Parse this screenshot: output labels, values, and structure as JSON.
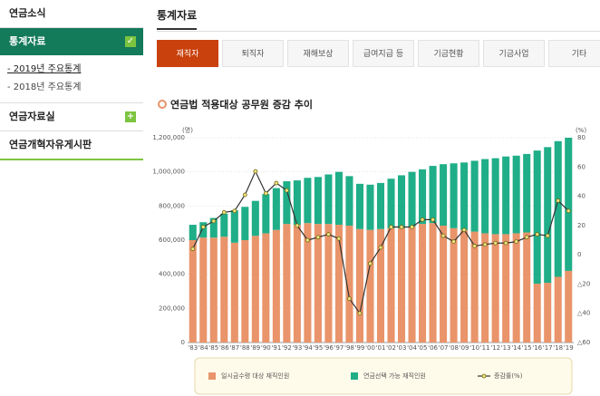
{
  "sidebar": {
    "items": [
      "연금소식",
      "통계자료",
      "연금자료실",
      "연금개혁자유게시판"
    ],
    "subitems": [
      "- 2019년 주요통계",
      "- 2018년 주요통계"
    ]
  },
  "header": {
    "title": "통계자료"
  },
  "tabs": [
    "재직자",
    "퇴직자",
    "재해보상",
    "급여지급 등",
    "기금현황",
    "기금사업",
    "기타"
  ],
  "chart_data": {
    "type": "bar",
    "title": "연금법 적용대상 공무원 증감 추이",
    "categories": [
      "'83",
      "'84",
      "'85",
      "'86",
      "'87",
      "'88",
      "'89",
      "'90",
      "'91",
      "'92",
      "'93",
      "'94",
      "'95",
      "'96",
      "'97",
      "'98",
      "'99",
      "'00",
      "'01",
      "'02",
      "'03",
      "'04",
      "'05",
      "'06",
      "'07",
      "'08",
      "'09",
      "'10",
      "'11",
      "'12",
      "'13",
      "'14",
      "'15",
      "'16",
      "'17",
      "'18",
      "'19"
    ],
    "stacked": true,
    "y_label": "(명)",
    "y2_label": "(%)",
    "ylim": [
      0,
      1200000
    ],
    "yticks": [
      0,
      {
        "value": 200000,
        "label": "200,000"
      },
      {
        "value": 400000,
        "label": "400,000"
      },
      {
        "value": 600000,
        "label": "600,000"
      },
      {
        "value": 800000,
        "label": "800,000"
      },
      {
        "value": 1000000,
        "label": "1,000,000"
      },
      {
        "value": 1200000,
        "label": "1,200,000"
      }
    ],
    "y2lim": [
      -60,
      80
    ],
    "y2ticks": [
      {
        "value": -60,
        "label": "△60"
      },
      {
        "value": -40,
        "label": "△40"
      },
      {
        "value": -20,
        "label": "△20"
      },
      0,
      20,
      40,
      60,
      80
    ],
    "grid": true,
    "series": [
      {
        "name": "일시금수령 대상 재직인원",
        "color": "#e9946a",
        "values": [
          600000,
          615000,
          615000,
          620000,
          585000,
          600000,
          625000,
          640000,
          660000,
          695000,
          690000,
          700000,
          695000,
          695000,
          690000,
          685000,
          665000,
          660000,
          665000,
          670000,
          670000,
          680000,
          695000,
          700000,
          685000,
          670000,
          660000,
          650000,
          640000,
          635000,
          635000,
          640000,
          645000,
          345000,
          350000,
          385000,
          420000
        ]
      },
      {
        "name": "연금선택 가능 재직인원",
        "color": "#1fae88",
        "values": [
          90000,
          90000,
          115000,
          135000,
          190000,
          195000,
          205000,
          230000,
          245000,
          250000,
          260000,
          265000,
          275000,
          290000,
          310000,
          290000,
          265000,
          265000,
          270000,
          290000,
          310000,
          320000,
          320000,
          335000,
          360000,
          380000,
          395000,
          415000,
          435000,
          445000,
          455000,
          455000,
          460000,
          780000,
          795000,
          795000,
          780000
        ]
      },
      {
        "name": "증감률(%)",
        "color": "#333333",
        "type": "line",
        "axis": "y2",
        "values": [
          4,
          19,
          23,
          29,
          30,
          41,
          57,
          42,
          49,
          44,
          20,
          10,
          12,
          14,
          11,
          -30,
          -40,
          -6,
          5,
          19,
          19,
          19,
          24,
          24,
          13,
          9,
          17,
          6,
          7,
          8,
          8,
          9,
          12,
          14,
          13,
          37,
          30
        ]
      }
    ]
  }
}
